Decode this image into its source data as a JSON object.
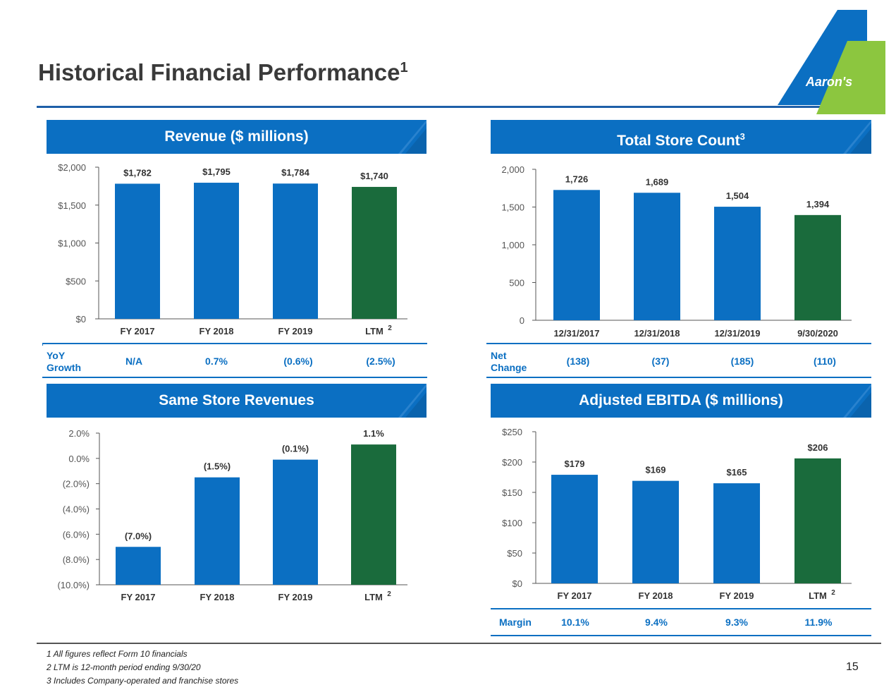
{
  "page": {
    "title": "Historical Financial Performance",
    "title_sup": "1",
    "logo_text": "Aaron's",
    "page_number": "15",
    "footnotes": [
      "1 All figures reflect Form 10 financials",
      "2 LTM is 12-month period ending 9/30/20",
      "3 Includes Company-operated and franchise stores"
    ]
  },
  "colors": {
    "blue": "#0b6fc2",
    "green": "#1a6b3c",
    "logo_green": "#8cc63f",
    "dark_blue": "#1e5fa8"
  },
  "panels": {
    "revenue": {
      "title": "Revenue ($ millions)",
      "row_label": [
        "YoY",
        "Growth"
      ],
      "row_values": [
        "N/A",
        "0.7%",
        "(0.6%)",
        "(2.5%)"
      ]
    },
    "stores": {
      "title": "Total Store Count",
      "title_sup": "3",
      "row_label": [
        "Net",
        "Change"
      ],
      "row_values": [
        "(138)",
        "(37)",
        "(185)",
        "(110)"
      ]
    },
    "sss": {
      "title": "Same Store Revenues"
    },
    "ebitda": {
      "title": "Adjusted EBITDA ($ millions)",
      "row_label": [
        "Margin"
      ],
      "row_values": [
        "10.1%",
        "9.4%",
        "9.3%",
        "11.9%"
      ]
    }
  },
  "chart_data": [
    {
      "type": "bar",
      "title": "Revenue ($ millions)",
      "categories": [
        "FY 2017",
        "FY 2018",
        "FY 2019",
        "LTM"
      ],
      "category_sups": [
        "",
        "",
        "",
        "2"
      ],
      "values": [
        1782,
        1795,
        1784,
        1740
      ],
      "labels": [
        "$1,782",
        "$1,795",
        "$1,784",
        "$1,740"
      ],
      "highlight": [
        false,
        false,
        false,
        true
      ],
      "ylim": [
        0,
        2000
      ],
      "yticks": [
        0,
        500,
        1000,
        1500,
        2000
      ],
      "ytick_labels": [
        "$0",
        "$500",
        "$1,000",
        "$1,500",
        "$2,000"
      ]
    },
    {
      "type": "bar",
      "title": "Total Store Count",
      "categories": [
        "12/31/2017",
        "12/31/2018",
        "12/31/2019",
        "9/30/2020"
      ],
      "category_sups": [
        "",
        "",
        "",
        ""
      ],
      "values": [
        1726,
        1689,
        1504,
        1394
      ],
      "labels": [
        "1,726",
        "1,689",
        "1,504",
        "1,394"
      ],
      "highlight": [
        false,
        false,
        false,
        true
      ],
      "ylim": [
        0,
        2000
      ],
      "yticks": [
        0,
        500,
        1000,
        1500,
        2000
      ],
      "ytick_labels": [
        "0",
        "500",
        "1,000",
        "1,500",
        "2,000"
      ]
    },
    {
      "type": "bar",
      "title": "Same Store Revenues",
      "categories": [
        "FY 2017",
        "FY 2018",
        "FY 2019",
        "LTM"
      ],
      "category_sups": [
        "",
        "",
        "",
        "2"
      ],
      "values": [
        -7.0,
        -1.5,
        -0.1,
        1.1
      ],
      "labels": [
        "(7.0%)",
        "(1.5%)",
        "(0.1%)",
        "1.1%"
      ],
      "highlight": [
        false,
        false,
        false,
        true
      ],
      "ylim": [
        -10,
        2
      ],
      "baseline": -10,
      "yticks": [
        -10,
        -8,
        -6,
        -4,
        -2,
        0,
        2
      ],
      "ytick_labels": [
        "(10.0%)",
        "(8.0%)",
        "(6.0%)",
        "(4.0%)",
        "(2.0%)",
        "0.0%",
        "2.0%"
      ]
    },
    {
      "type": "bar",
      "title": "Adjusted EBITDA ($ millions)",
      "categories": [
        "FY 2017",
        "FY 2018",
        "FY 2019",
        "LTM"
      ],
      "category_sups": [
        "",
        "",
        "",
        "2"
      ],
      "values": [
        179,
        169,
        165,
        206
      ],
      "labels": [
        "$179",
        "$169",
        "$165",
        "$206"
      ],
      "highlight": [
        false,
        false,
        false,
        true
      ],
      "ylim": [
        0,
        250
      ],
      "yticks": [
        0,
        50,
        100,
        150,
        200,
        250
      ],
      "ytick_labels": [
        "$0",
        "$50",
        "$100",
        "$150",
        "$200",
        "$250"
      ]
    }
  ]
}
